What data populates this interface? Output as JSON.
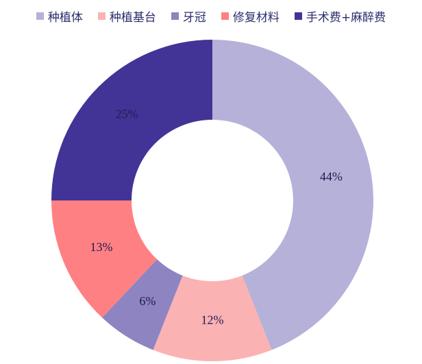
{
  "chart_data": {
    "type": "pie",
    "variant": "donut",
    "legend_position": "top",
    "categories": [
      "种植体",
      "种植基台",
      "牙冠",
      "修复材料",
      "手术费+麻醉费"
    ],
    "values": [
      44,
      12,
      6,
      13,
      25
    ],
    "labels": [
      "44%",
      "12%",
      "6%",
      "13%",
      "25%"
    ],
    "colors": [
      "#b6b1d9",
      "#fbb2b3",
      "#8d84c1",
      "#ff8083",
      "#423496"
    ]
  }
}
